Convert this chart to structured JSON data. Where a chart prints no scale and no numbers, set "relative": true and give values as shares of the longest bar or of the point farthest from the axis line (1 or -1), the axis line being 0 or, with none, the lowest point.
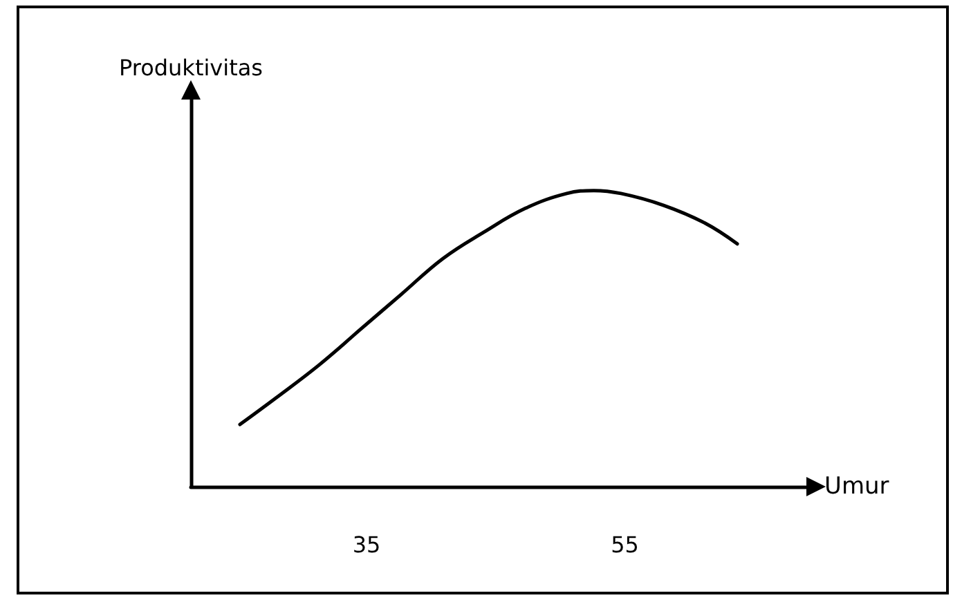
{
  "chart_data": {
    "type": "line",
    "xlabel": "Umur",
    "ylabel": "Produktivitas",
    "relative": true,
    "xlim": [
      21.4,
      69.8
    ],
    "xticks": [
      35,
      55
    ],
    "grid": false,
    "marker": "none",
    "line_style": "solid",
    "series": [
      {
        "color": "#000000",
        "x": [
          25.2,
          28.0,
          31.3,
          34.5,
          37.7,
          40.9,
          44.1,
          47.3,
          50.5,
          52.6,
          54.7,
          58.0,
          61.2,
          63.7
        ],
        "values": [
          0.21,
          0.3,
          0.41,
          0.53,
          0.65,
          0.77,
          0.86,
          0.94,
          0.99,
          1,
          0.99,
          0.95,
          0.89,
          0.82
        ]
      }
    ]
  }
}
